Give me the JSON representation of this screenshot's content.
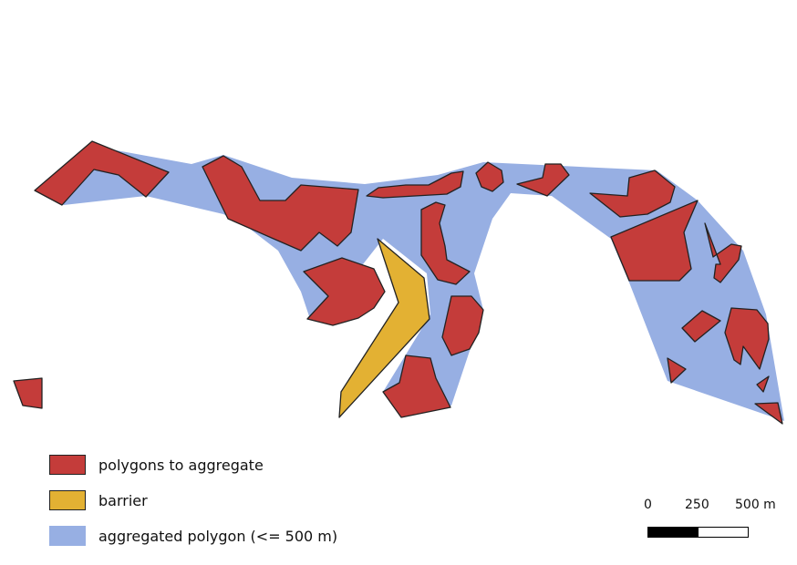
{
  "colors": {
    "polygons": "#c43c3a",
    "barrier": "#e3b133",
    "aggregated": "#97afe3",
    "outline": "#222222"
  },
  "legend": {
    "polygons_label": "polygons to aggregate",
    "barrier_label": "barrier",
    "aggregated_label": "aggregated polygon (<= 500 m)"
  },
  "scale": {
    "tick_0": "0",
    "tick_1": "250",
    "tick_2": "500 m"
  }
}
